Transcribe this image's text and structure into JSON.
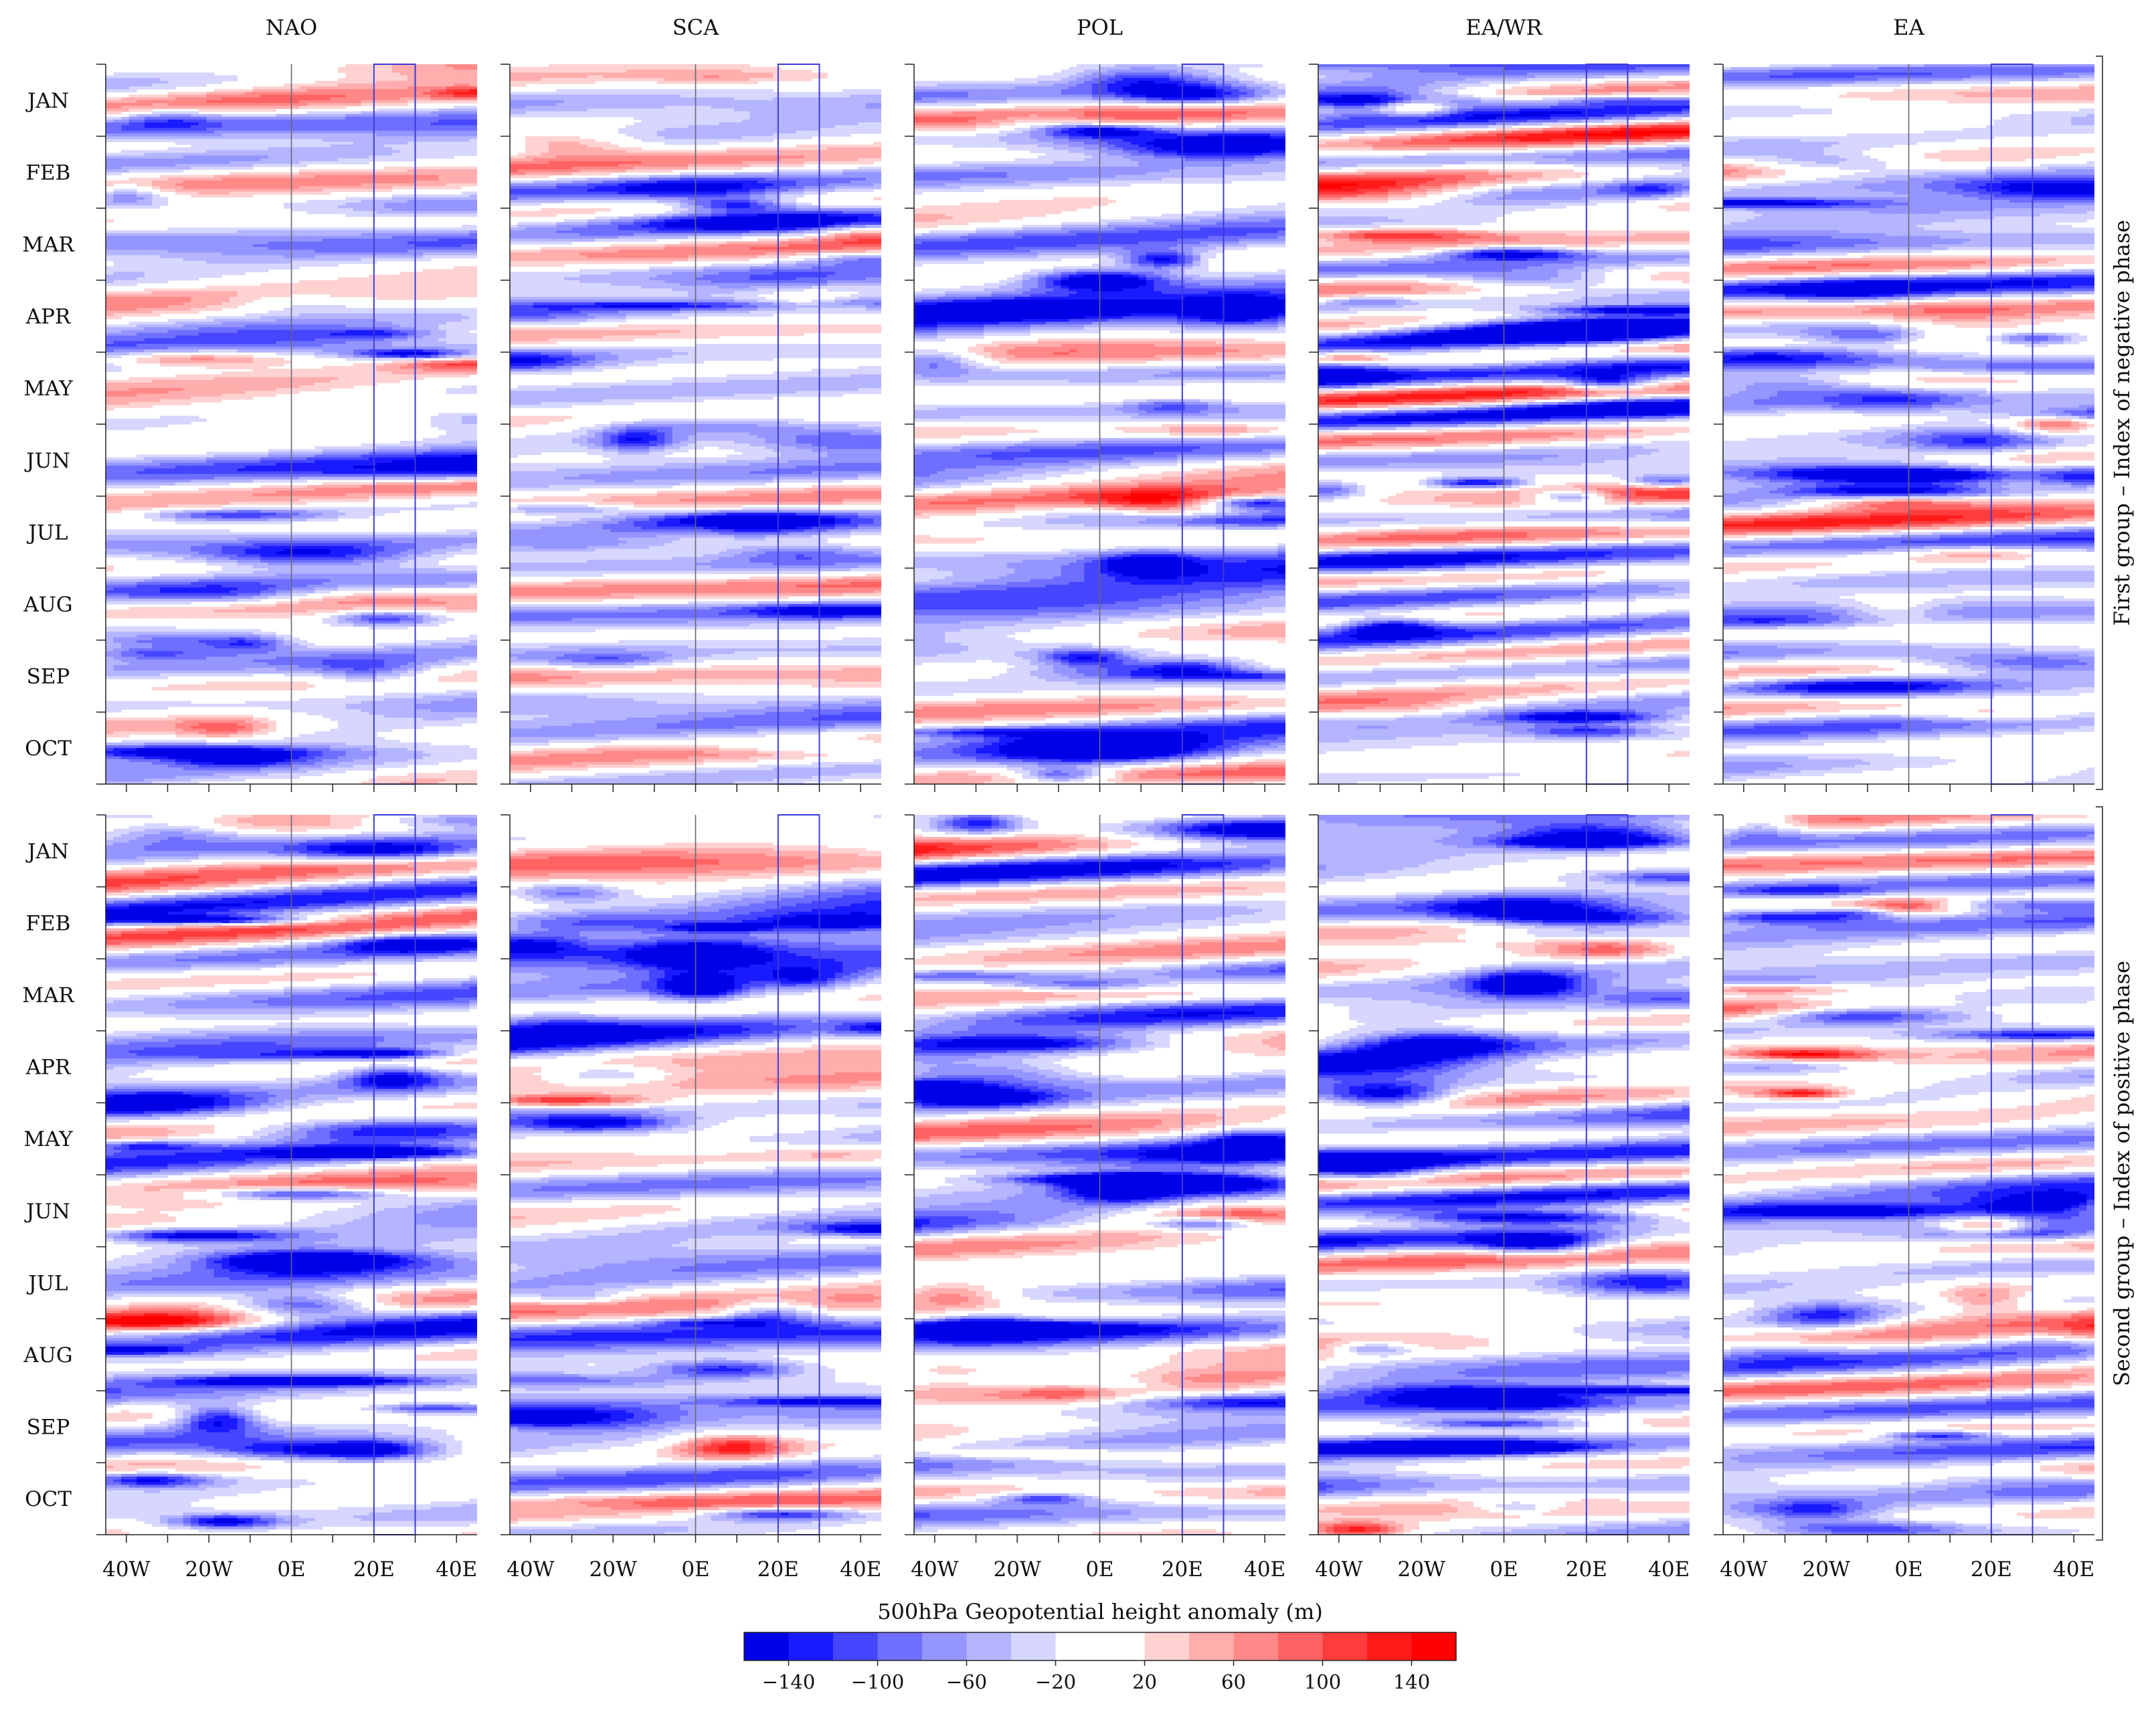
{
  "chart_data": {
    "type": "heatmap",
    "panels": [
      {
        "group": "top",
        "pattern": "NAO",
        "amplitude": 120,
        "blue_bias": 0.25
      },
      {
        "group": "top",
        "pattern": "SCA",
        "amplitude": 110,
        "blue_bias": 0.3
      },
      {
        "group": "top",
        "pattern": "POL",
        "amplitude": 150,
        "blue_bias": 0.35
      },
      {
        "group": "top",
        "pattern": "EA/WR",
        "amplitude": 140,
        "blue_bias": 0.25
      },
      {
        "group": "top",
        "pattern": "EA",
        "amplitude": 130,
        "blue_bias": 0.3
      },
      {
        "group": "bottom",
        "pattern": "NAO",
        "amplitude": 150,
        "blue_bias": 0.3
      },
      {
        "group": "bottom",
        "pattern": "SCA",
        "amplitude": 150,
        "blue_bias": 0.35
      },
      {
        "group": "bottom",
        "pattern": "POL",
        "amplitude": 150,
        "blue_bias": 0.25
      },
      {
        "group": "bottom",
        "pattern": "EA/WR",
        "amplitude": 160,
        "blue_bias": 0.3
      },
      {
        "group": "bottom",
        "pattern": "EA",
        "amplitude": 140,
        "blue_bias": 0.25
      }
    ],
    "column_titles": [
      "NAO",
      "SCA",
      "POL",
      "EA/WR",
      "EA"
    ],
    "row_labels": [
      "First group – Index of negative phase",
      "Second group – Index of positive phase"
    ],
    "y_ticks": [
      "JAN",
      "FEB",
      "MAR",
      "APR",
      "MAY",
      "JUN",
      "JUL",
      "AUG",
      "SEP",
      "OCT"
    ],
    "x_ticks": [
      "40W",
      "20W",
      "0E",
      "20E",
      "40E"
    ],
    "x_range": [
      -45,
      45
    ],
    "reference_box_lon": [
      20,
      30
    ],
    "meridian_line": 0,
    "colorbar": {
      "label": "500hPa Geopotential height anomaly (m)",
      "tick_labels": [
        "−140",
        "−100",
        "−60",
        "−20",
        "20",
        "60",
        "100",
        "140"
      ],
      "levels": [
        -160,
        -140,
        -120,
        -100,
        -80,
        -60,
        -40,
        -20,
        0,
        20,
        40,
        60,
        80,
        100,
        120,
        140,
        160
      ],
      "colors": [
        "#0000e8",
        "#1a1aff",
        "#4646ff",
        "#6e6eff",
        "#9595ff",
        "#b4b4ff",
        "#d6d6ff",
        "#ffffff",
        "#ffffff",
        "#ffd2d2",
        "#ffadad",
        "#ff8888",
        "#ff6262",
        "#ff3c3c",
        "#ff1a1a",
        "#ff0000"
      ]
    }
  }
}
